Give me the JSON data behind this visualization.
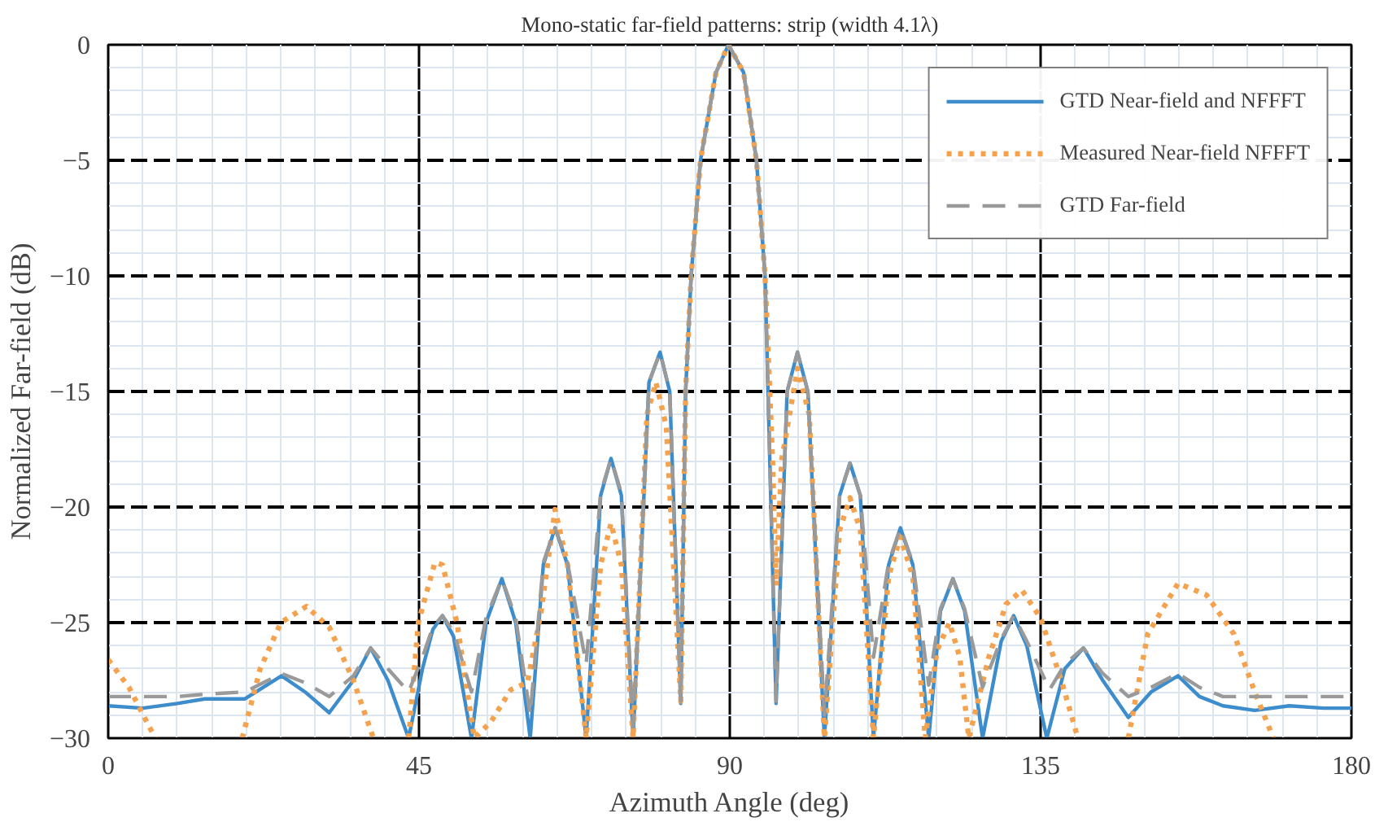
{
  "chart_data": {
    "type": "line",
    "title": "Mono-static far-field patterns: strip (width 4.1λ)",
    "xlabel": "Azimuth Angle (deg)",
    "ylabel": "Normalized Far-field (dB)",
    "xlim": [
      0,
      180
    ],
    "ylim": [
      -30,
      0
    ],
    "xticks": [
      0,
      45,
      90,
      135,
      180
    ],
    "yticks": [
      -30,
      -25,
      -20,
      -15,
      -10,
      -5,
      0
    ],
    "grid": true,
    "legend": "top right",
    "series": [
      {
        "name": "GTD Near-field and NFFFT",
        "color": "#3d8ccc",
        "line_style": "solid",
        "x": [
          0,
          5,
          10,
          14,
          19.8,
          25.1,
          28.5,
          32,
          35.5,
          38,
          40.5,
          43.5,
          45.5,
          47,
          48.4,
          50,
          52.6,
          54.7,
          57,
          59,
          61.1,
          63,
          64.7,
          66.5,
          69.2,
          71.3,
          72.8,
          74.3,
          76,
          78.3,
          79.9,
          81.3,
          82.9,
          83.6,
          84.4,
          85.75,
          88,
          89.8,
          92,
          93.86,
          95.1,
          96.7,
          98.3,
          99.8,
          101.3,
          103.7,
          105.9,
          107.4,
          108.9,
          110.8,
          113,
          114.7,
          116.5,
          118.8,
          120.5,
          122.3,
          124,
          126.6,
          129.3,
          131.1,
          133,
          135.9,
          138.5,
          141.2,
          144,
          147.7,
          151,
          154.9,
          158,
          161.4,
          166,
          171,
          176,
          180
        ],
        "values": [
          -28.6,
          -28.7,
          -28.5,
          -28.3,
          -28.3,
          -27.3,
          -28,
          -28.9,
          -27.5,
          -26.1,
          -27.5,
          -30,
          -27,
          -25.3,
          -24.7,
          -25.6,
          -30,
          -25,
          -23.1,
          -25,
          -30,
          -22.5,
          -20.9,
          -22.5,
          -30,
          -19.5,
          -17.9,
          -19.5,
          -30,
          -14.6,
          -13.3,
          -15,
          -28.5,
          -15,
          -10,
          -5,
          -1.2,
          0,
          -1.2,
          -5,
          -10,
          -28.5,
          -15,
          -13.3,
          -15,
          -30,
          -19.5,
          -18.1,
          -19.5,
          -30,
          -22.5,
          -20.9,
          -22.5,
          -30,
          -24.5,
          -23.1,
          -24.5,
          -30,
          -25.8,
          -24.7,
          -26,
          -30,
          -27,
          -26.1,
          -27.5,
          -29.1,
          -28,
          -27.3,
          -28.2,
          -28.6,
          -28.8,
          -28.6,
          -28.7,
          -28.7
        ]
      },
      {
        "name": "Measured Near-field NFFFT",
        "color": "#f5a24e",
        "line_style": "dotted",
        "x": [
          0,
          3,
          6.8,
          13,
          19.4,
          22,
          25,
          28.7,
          32,
          35.5,
          38.4,
          41,
          43.5,
          44.9,
          47.3,
          48.4,
          50.5,
          53,
          55.4,
          58.3,
          60.7,
          62.7,
          64.7,
          66.5,
          69.2,
          71.3,
          72.8,
          74.3,
          76,
          78,
          79.3,
          80.8,
          82.9,
          83.6,
          84.4,
          85.75,
          88,
          89.8,
          92,
          93.86,
          95.1,
          96.2,
          96.7,
          97.5,
          99.8,
          101.5,
          103.7,
          105.9,
          107.4,
          108.9,
          110.8,
          113,
          114.7,
          116.5,
          118.3,
          120,
          121.8,
          123.3,
          124.6,
          127.5,
          130,
          132.3,
          135,
          138,
          140.4,
          144,
          147.7,
          150.5,
          154.9,
          159,
          163,
          166,
          168.7
        ],
        "values": [
          -26.6,
          -27.8,
          -30,
          null,
          -30,
          -27,
          -25,
          -24.3,
          -25.2,
          -27.5,
          -30,
          null,
          -30,
          -25,
          -22.4,
          -22.5,
          -25,
          -30,
          -29.3,
          -27.9,
          -27.6,
          -24.5,
          -20.1,
          -22.5,
          -30,
          -22.5,
          -20.7,
          -22.5,
          -30,
          -16,
          -14.6,
          -16.5,
          -28.4,
          -15,
          -10,
          -5,
          -1.2,
          0,
          -1.2,
          -5,
          -10,
          -18,
          -23.4,
          -18,
          -14,
          -16,
          -30,
          -21,
          -19.6,
          -21,
          -30,
          -23,
          -21.3,
          -23,
          -30,
          -26.2,
          -25,
          -26.5,
          -30,
          -26.5,
          -24.2,
          -23.6,
          -24.8,
          -27.5,
          -30,
          null,
          -30,
          -25.5,
          -23.3,
          -23.8,
          -25.5,
          -28,
          -30
        ]
      },
      {
        "name": "GTD Far-field",
        "color": "#9a9a9a",
        "line_style": "dashed",
        "x": [
          0,
          5,
          10,
          14,
          19.8,
          25.1,
          28.5,
          32,
          35.5,
          38,
          40.5,
          43.5,
          45.5,
          47,
          48.4,
          50,
          52.6,
          54.7,
          57,
          59,
          61.1,
          63,
          64.7,
          66.5,
          69.2,
          71.3,
          72.8,
          74.3,
          76,
          78.3,
          79.9,
          81.3,
          82.9,
          83.6,
          84.4,
          85.75,
          88,
          89.8,
          92,
          93.86,
          95.1,
          96.7,
          98.3,
          99.8,
          101.3,
          103.7,
          105.9,
          107.4,
          108.9,
          110.8,
          113,
          114.7,
          116.5,
          118.8,
          120.5,
          122.3,
          124,
          126.6,
          129.3,
          131.1,
          133,
          136.3,
          138.5,
          141.2,
          144,
          147.7,
          151,
          154.9,
          158,
          161.4,
          166,
          171,
          176,
          180
        ],
        "values": [
          -28.2,
          -28.2,
          -28.2,
          -28.1,
          -28,
          -27.2,
          -27.6,
          -28.2,
          -27.3,
          -26.1,
          -27,
          -28,
          -26.5,
          -25.2,
          -24.7,
          -25.4,
          -28,
          -24.8,
          -23.1,
          -24.8,
          -29,
          -22.4,
          -20.9,
          -22.4,
          -26.8,
          -19.4,
          -17.9,
          -19.4,
          -29.5,
          -14.6,
          -13.3,
          -15,
          -28.4,
          -15,
          -10,
          -5,
          -1.2,
          0,
          -1.2,
          -5,
          -10,
          -28.4,
          -15,
          -13.3,
          -15,
          -29,
          -19.5,
          -18.1,
          -19.5,
          -26.5,
          -22.4,
          -20.9,
          -22.4,
          -27.7,
          -24.4,
          -23.1,
          -24.4,
          -27.8,
          -25.7,
          -24.7,
          -25.8,
          -27.9,
          -26.8,
          -26.1,
          -27.2,
          -28.2,
          -27.8,
          -27.2,
          -27.8,
          -28.2,
          -28.2,
          -28.2,
          -28.2,
          -28.2
        ]
      }
    ]
  }
}
